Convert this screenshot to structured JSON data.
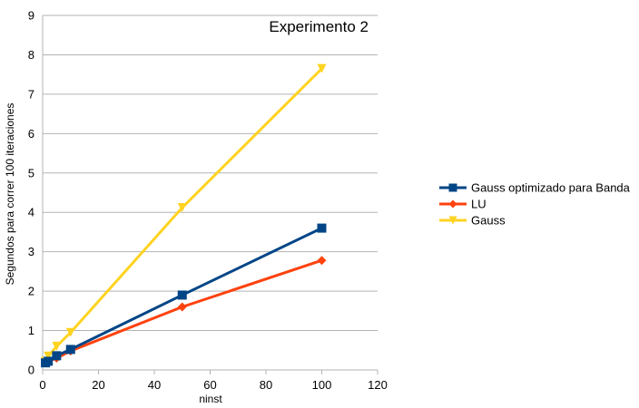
{
  "chart_data": {
    "type": "line",
    "title": "Experimento 2",
    "xlabel": "ninst",
    "ylabel": "Segundos para correr 100 iteraciones",
    "xlim": [
      0,
      120
    ],
    "ylim": [
      0,
      9
    ],
    "xticks": [
      0,
      20,
      40,
      60,
      80,
      100,
      120
    ],
    "yticks": [
      0,
      1,
      2,
      3,
      4,
      5,
      6,
      7,
      8,
      9
    ],
    "grid": "horizontal",
    "legend_position": "right",
    "series": [
      {
        "name": "Gauss optimizado para Banda",
        "color": "#004586",
        "marker": "square",
        "x": [
          1,
          2,
          5,
          10,
          50,
          100
        ],
        "values": [
          0.18,
          0.22,
          0.36,
          0.52,
          1.9,
          3.6
        ]
      },
      {
        "name": "LU",
        "color": "#ff420e",
        "marker": "diamond",
        "x": [
          1,
          2,
          5,
          10,
          50,
          100
        ],
        "values": [
          0.18,
          0.22,
          0.3,
          0.48,
          1.6,
          2.78
        ]
      },
      {
        "name": "Gauss",
        "color": "#ffd320",
        "marker": "triangle-down",
        "x": [
          1,
          2,
          5,
          10,
          50,
          100
        ],
        "values": [
          0.22,
          0.35,
          0.6,
          0.95,
          4.12,
          7.65
        ]
      }
    ]
  }
}
